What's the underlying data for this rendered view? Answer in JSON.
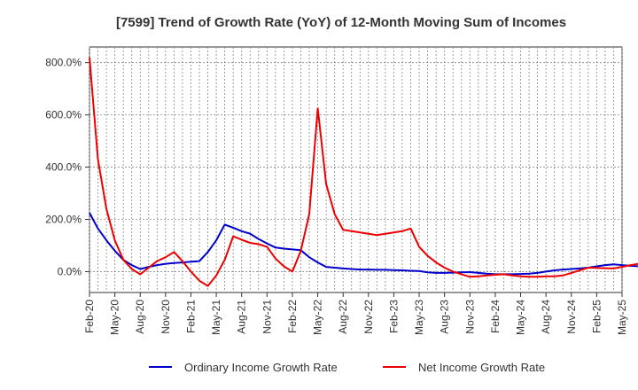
{
  "chart_data": {
    "type": "line",
    "title": "[7599]  Trend of Growth Rate (YoY) of 12-Month Moving Sum of Incomes",
    "xlabel": "",
    "ylabel": "",
    "x_tick_labels": [
      "Feb-20",
      "May-20",
      "Aug-20",
      "Nov-20",
      "Feb-21",
      "May-21",
      "Aug-21",
      "Nov-21",
      "Feb-22",
      "May-22",
      "Aug-22",
      "Nov-22",
      "Feb-23",
      "May-23",
      "Aug-23",
      "Nov-23",
      "Feb-24",
      "May-24",
      "Aug-24",
      "Nov-24",
      "Feb-25",
      "May-25"
    ],
    "y_tick_labels": [
      "0.0%",
      "200.0%",
      "400.0%",
      "600.0%",
      "800.0%"
    ],
    "y_ticks": [
      0,
      200,
      400,
      600,
      800
    ],
    "ylim": [
      -80,
      860
    ],
    "x_start": "2020-02",
    "grid": true,
    "legend_position": "bottom",
    "series": [
      {
        "name": "Ordinary Income Growth Rate",
        "color": "#0000cc",
        "values": [
          225,
          165,
          120,
          80,
          45,
          25,
          10,
          18,
          25,
          30,
          33,
          35,
          38,
          40,
          75,
          120,
          180,
          168,
          155,
          145,
          125,
          108,
          92,
          88,
          85,
          82,
          55,
          35,
          18,
          15,
          12,
          10,
          8,
          8,
          7,
          7,
          6,
          5,
          3,
          2,
          -3,
          -5,
          -5,
          -4,
          -3,
          -2,
          -5,
          -8,
          -10,
          -10,
          -10,
          -9,
          -8,
          -5,
          0,
          5,
          8,
          10,
          12,
          15,
          20,
          25,
          28,
          25,
          22,
          20
        ]
      },
      {
        "name": "Net Income Growth Rate",
        "color": "#ee0000",
        "values": [
          820,
          430,
          240,
          120,
          45,
          10,
          -10,
          15,
          40,
          55,
          75,
          40,
          0,
          -35,
          -55,
          -15,
          45,
          135,
          122,
          110,
          105,
          95,
          50,
          20,
          0,
          80,
          220,
          625,
          335,
          220,
          160,
          155,
          150,
          145,
          140,
          145,
          150,
          155,
          165,
          95,
          60,
          35,
          15,
          0,
          -10,
          -20,
          -18,
          -15,
          -12,
          -10,
          -15,
          -18,
          -20,
          -20,
          -18,
          -18,
          -15,
          -5,
          5,
          15,
          14,
          13,
          12,
          18,
          25,
          30,
          35,
          30,
          25,
          20
        ]
      }
    ]
  }
}
